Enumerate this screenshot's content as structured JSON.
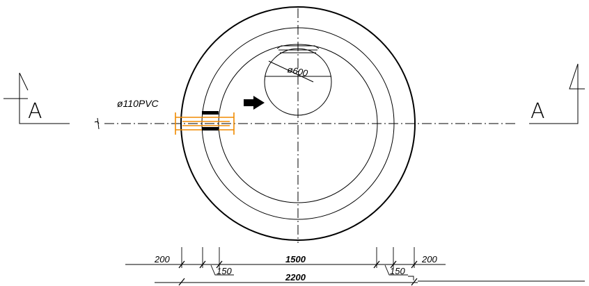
{
  "section_marks": {
    "left": "A",
    "right": "A"
  },
  "annotations": {
    "inlet_pipe": "ø110PVC",
    "opening": "ø600"
  },
  "dimensions": {
    "wall_left": "200",
    "inner_diameter": "1500",
    "wall_right": "200",
    "gap_left": "150",
    "gap_right": "150",
    "outer_diameter": "2200"
  },
  "colors": {
    "pipe": "#f08a00",
    "lines": "#000000"
  },
  "icons": [
    "flow-direction-arrow-icon",
    "section-cut-marker-icon",
    "break-line-icon"
  ]
}
